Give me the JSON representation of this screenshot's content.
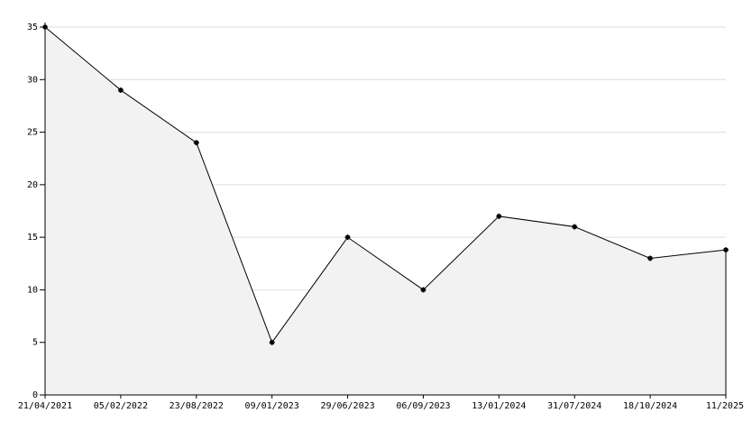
{
  "chart_data": {
    "type": "area",
    "categories": [
      "21/04/2021",
      "05/02/2022",
      "23/08/2022",
      "09/01/2023",
      "29/06/2023",
      "06/09/2023",
      "13/01/2024",
      "31/07/2024",
      "18/10/2024",
      "11/2025"
    ],
    "values": [
      35,
      29,
      24,
      5,
      15,
      10,
      17,
      16,
      13,
      13.8
    ],
    "color": "#000000",
    "fill": "#f2f2f2",
    "ylim": [
      0,
      35
    ],
    "yticks": [
      0,
      5,
      10,
      15,
      20,
      25,
      30,
      35
    ],
    "grid": true
  }
}
